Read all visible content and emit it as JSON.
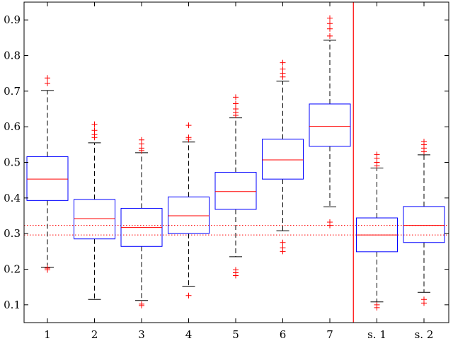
{
  "chart_data": {
    "type": "box",
    "title": "",
    "xlabel": "",
    "ylabel": "",
    "ylim": [
      0.05,
      0.95
    ],
    "yticks": [
      "0.1",
      "0.2",
      "0.3",
      "0.4",
      "0.5",
      "0.6",
      "0.7",
      "0.8",
      "0.9"
    ],
    "categories": [
      "1",
      "2",
      "3",
      "4",
      "5",
      "6",
      "7",
      "s. 1",
      "s. 2"
    ],
    "box_color": "#0000ff",
    "median_color": "#ff0000",
    "outlier_color": "#ff0000",
    "whisker_color": "#000000",
    "separator": {
      "after_category": "7",
      "color": "#ff0000"
    },
    "reference_lines": [
      {
        "y": 0.323,
        "style": "dotted",
        "color": "#ff0000"
      },
      {
        "y": 0.296,
        "style": "dotted",
        "color": "#ff0000"
      }
    ],
    "boxes": [
      {
        "category": "1",
        "whisker_low": 0.205,
        "q1": 0.393,
        "median": 0.453,
        "q3": 0.516,
        "whisker_high": 0.702,
        "outliers": [
          0.198,
          0.203,
          0.722,
          0.737
        ]
      },
      {
        "category": "2",
        "whisker_low": 0.115,
        "q1": 0.285,
        "median": 0.342,
        "q3": 0.396,
        "whisker_high": 0.555,
        "outliers": [
          0.57,
          0.578,
          0.59,
          0.607
        ]
      },
      {
        "category": "3",
        "whisker_low": 0.112,
        "q1": 0.264,
        "median": 0.317,
        "q3": 0.371,
        "whisker_high": 0.527,
        "outliers": [
          0.098,
          0.102,
          0.533,
          0.54,
          0.552,
          0.563
        ]
      },
      {
        "category": "4",
        "whisker_low": 0.152,
        "q1": 0.3,
        "median": 0.35,
        "q3": 0.403,
        "whisker_high": 0.557,
        "outliers": [
          0.126,
          0.565,
          0.57,
          0.604
        ]
      },
      {
        "category": "5",
        "whisker_low": 0.235,
        "q1": 0.368,
        "median": 0.418,
        "q3": 0.472,
        "whisker_high": 0.625,
        "outliers": [
          0.182,
          0.19,
          0.198,
          0.632,
          0.64,
          0.65,
          0.665,
          0.683
        ]
      },
      {
        "category": "6",
        "whisker_low": 0.308,
        "q1": 0.453,
        "median": 0.507,
        "q3": 0.565,
        "whisker_high": 0.728,
        "outliers": [
          0.25,
          0.26,
          0.275,
          0.74,
          0.75,
          0.762,
          0.78
        ]
      },
      {
        "category": "7",
        "whisker_low": 0.375,
        "q1": 0.545,
        "median": 0.601,
        "q3": 0.664,
        "whisker_high": 0.843,
        "outliers": [
          0.323,
          0.332,
          0.855,
          0.875,
          0.89,
          0.905
        ]
      },
      {
        "category": "s. 1",
        "whisker_low": 0.108,
        "q1": 0.249,
        "median": 0.296,
        "q3": 0.344,
        "whisker_high": 0.484,
        "outliers": [
          0.092,
          0.1,
          0.49,
          0.5,
          0.512,
          0.522
        ]
      },
      {
        "category": "s. 2",
        "whisker_low": 0.135,
        "q1": 0.275,
        "median": 0.323,
        "q3": 0.376,
        "whisker_high": 0.521,
        "outliers": [
          0.105,
          0.115,
          0.53,
          0.54,
          0.55,
          0.558
        ]
      }
    ]
  }
}
